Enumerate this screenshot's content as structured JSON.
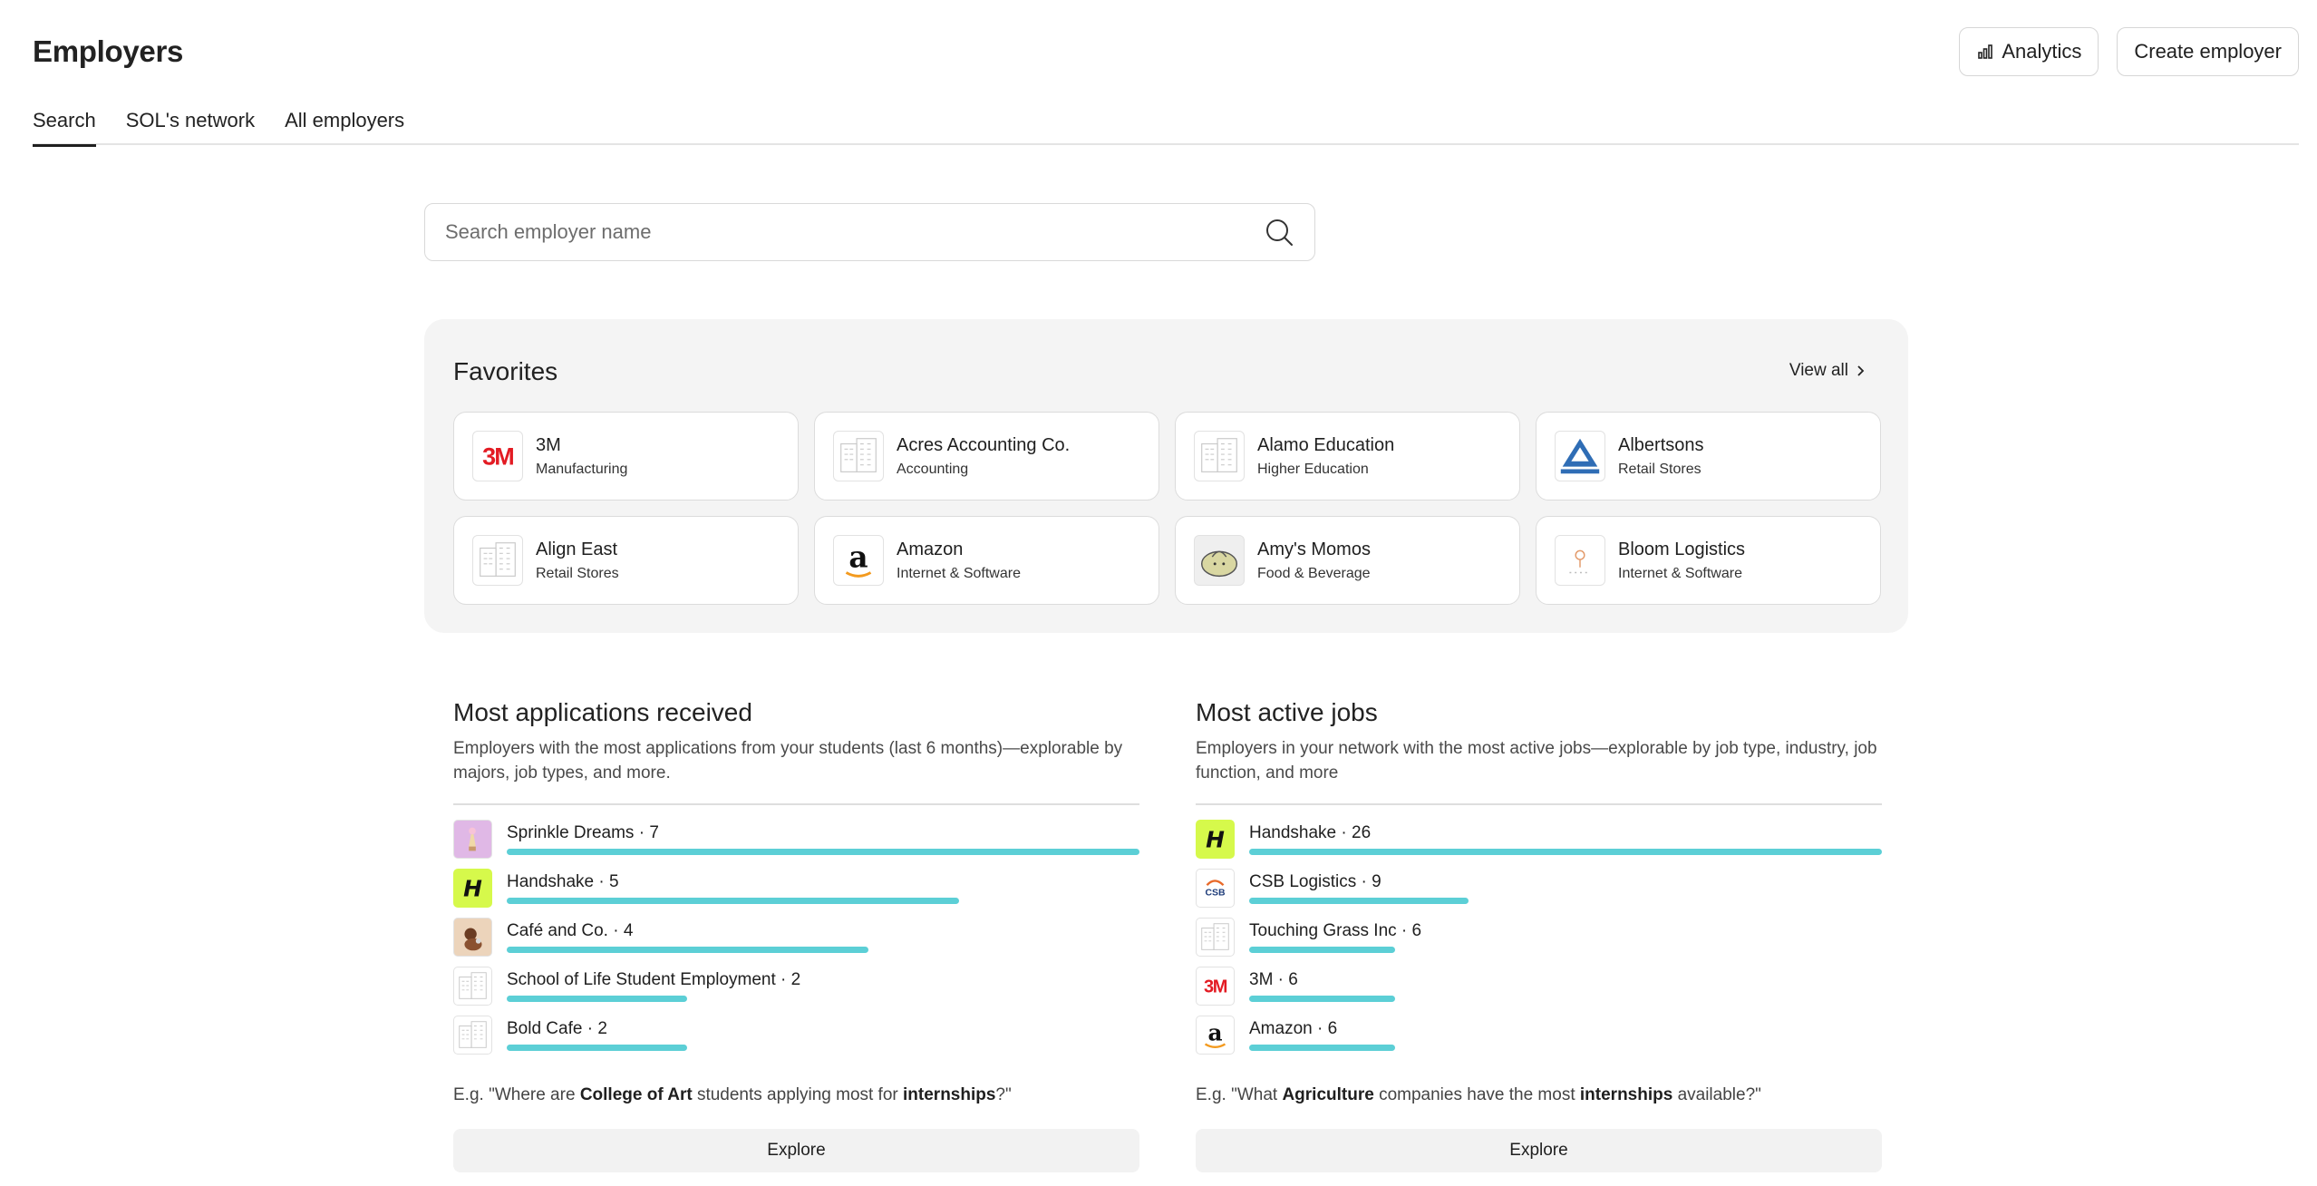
{
  "header": {
    "title": "Employers",
    "analytics_label": "Analytics",
    "create_label": "Create employer"
  },
  "tabs": [
    {
      "label": "Search",
      "active": true
    },
    {
      "label": "SOL's network",
      "active": false
    },
    {
      "label": "All employers",
      "active": false
    }
  ],
  "search": {
    "placeholder": "Search employer name",
    "value": ""
  },
  "favorites": {
    "title": "Favorites",
    "view_all": "View all",
    "items": [
      {
        "name": "3M",
        "industry": "Manufacturing",
        "logo": "3m-logo"
      },
      {
        "name": "Acres Accounting Co.",
        "industry": "Accounting",
        "logo": "building-icon"
      },
      {
        "name": "Alamo Education",
        "industry": "Higher Education",
        "logo": "building-icon"
      },
      {
        "name": "Albertsons",
        "industry": "Retail Stores",
        "logo": "albertsons-logo"
      },
      {
        "name": "Align East",
        "industry": "Retail Stores",
        "logo": "building-icon"
      },
      {
        "name": "Amazon",
        "industry": "Internet & Software",
        "logo": "amazon-logo"
      },
      {
        "name": "Amy's Momos",
        "industry": "Food & Beverage",
        "logo": "momo-logo"
      },
      {
        "name": "Bloom Logistics",
        "industry": "Internet & Software",
        "logo": "bloom-logo"
      }
    ]
  },
  "most_applications": {
    "title": "Most applications received",
    "description": "Employers with the most applications from your students (last 6 months)—explorable by majors, job types, and more.",
    "items": [
      {
        "label": "Sprinkle Dreams · 7",
        "value": 7,
        "logo": "sprinkle-logo"
      },
      {
        "label": "Handshake · 5",
        "value": 5,
        "logo": "handshake-logo"
      },
      {
        "label": "Café and Co. · 4",
        "value": 4,
        "logo": "cafe-logo"
      },
      {
        "label": "School of Life Student Employment · 2",
        "value": 2,
        "logo": "building-icon"
      },
      {
        "label": "Bold Cafe · 2",
        "value": 2,
        "logo": "building-icon"
      }
    ],
    "max": 7,
    "example_pre": "E.g. \"Where are ",
    "example_b1": "College of Art",
    "example_mid": " students applying most for ",
    "example_b2": "internships",
    "example_post": "?\"",
    "explore_label": "Explore"
  },
  "most_active_jobs": {
    "title": "Most active jobs",
    "description": "Employers in your network with the most active jobs—explorable by job type, industry, job function, and more",
    "items": [
      {
        "label": "Handshake · 26",
        "value": 26,
        "logo": "handshake-logo"
      },
      {
        "label": "CSB Logistics · 9",
        "value": 9,
        "logo": "csb-logo"
      },
      {
        "label": "Touching Grass Inc · 6",
        "value": 6,
        "logo": "building-icon"
      },
      {
        "label": "3M · 6",
        "value": 6,
        "logo": "3m-logo"
      },
      {
        "label": "Amazon · 6",
        "value": 6,
        "logo": "amazon-logo"
      }
    ],
    "max": 26,
    "example_pre": "E.g. \"What ",
    "example_b1": "Agriculture",
    "example_mid": " companies have the most ",
    "example_b2": "internships",
    "example_post": " available?\"",
    "explore_label": "Explore"
  },
  "colors": {
    "bar": "#5ccfd6",
    "panel": "#f4f4f4",
    "handshake": "#d6f94b",
    "3m_red": "#e31b23"
  },
  "logo_text": {
    "3m": "3M",
    "amazon": "a",
    "handshake": "H",
    "csb": "CSB"
  }
}
